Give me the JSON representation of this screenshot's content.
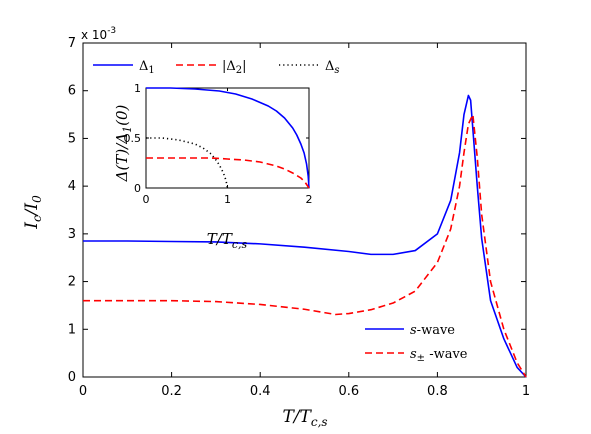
{
  "chart_data": [
    {
      "type": "line",
      "xlabel": "T/T_{c,s}",
      "xlabel_main": "T/T",
      "xlabel_sub": "c,s",
      "ylabel": "I_c/I_0",
      "ylabel_main": "I",
      "ylabel_sub": "c",
      "ylabel_rest": "/I",
      "ylabel_sub2": "0",
      "xlim": [
        0,
        1
      ],
      "ylim": [
        0,
        0.007
      ],
      "y_multiplier_base": "x 10",
      "y_multiplier_exp": "-3",
      "x_ticks": [
        "0",
        "0.2",
        "0.4",
        "0.6",
        "0.8",
        "1"
      ],
      "x_tick_values": [
        0,
        0.2,
        0.4,
        0.6,
        0.8,
        1
      ],
      "y_ticks": [
        "0",
        "1",
        "2",
        "3",
        "4",
        "5",
        "6",
        "7"
      ],
      "y_tick_values": [
        0,
        0.001,
        0.002,
        0.003,
        0.004,
        0.005,
        0.006,
        0.007
      ],
      "grid": false,
      "legend_placement": "bottom-right",
      "series": [
        {
          "name": "s-wave",
          "name_main": "s",
          "name_rest": "-wave",
          "color": "#0000ff",
          "style": "solid",
          "x": [
            0,
            0.1,
            0.2,
            0.3,
            0.4,
            0.5,
            0.6,
            0.65,
            0.7,
            0.75,
            0.8,
            0.83,
            0.85,
            0.86,
            0.87,
            0.875,
            0.88,
            0.89,
            0.9,
            0.92,
            0.95,
            0.98,
            1.0
          ],
          "y": [
            0.00285,
            0.00285,
            0.00284,
            0.00283,
            0.00279,
            0.00272,
            0.00263,
            0.00257,
            0.00257,
            0.00265,
            0.003,
            0.0037,
            0.0047,
            0.0055,
            0.0059,
            0.0058,
            0.0052,
            0.004,
            0.0029,
            0.0016,
            0.0008,
            0.0002,
            0.0
          ]
        },
        {
          "name": "s± -wave",
          "name_main": "s",
          "name_sub": "±",
          "name_rest": " -wave",
          "color": "#ff0000",
          "style": "dashed",
          "x": [
            0,
            0.1,
            0.2,
            0.3,
            0.4,
            0.5,
            0.57,
            0.6,
            0.65,
            0.7,
            0.75,
            0.8,
            0.83,
            0.85,
            0.86,
            0.87,
            0.88,
            0.89,
            0.9,
            0.92,
            0.95,
            0.98,
            1.0
          ],
          "y": [
            0.0016,
            0.0016,
            0.0016,
            0.00158,
            0.00152,
            0.00142,
            0.00131,
            0.00133,
            0.00141,
            0.00155,
            0.0018,
            0.0024,
            0.0031,
            0.004,
            0.0047,
            0.0053,
            0.0055,
            0.0046,
            0.0034,
            0.002,
            0.001,
            0.0003,
            0.0
          ]
        }
      ]
    },
    {
      "type": "line",
      "xlabel": "T/T_{c,s}",
      "xlabel_main": "T/T",
      "xlabel_sub": "c,s",
      "ylabel": "Δ(T)/Δ_1(0)",
      "ylabel_a": "Δ(T)/Δ",
      "ylabel_sub": "1",
      "ylabel_b": "(0)",
      "xlim": [
        0,
        2
      ],
      "ylim": [
        0,
        1
      ],
      "x_ticks": [
        "0",
        "1",
        "2"
      ],
      "x_tick_values": [
        0,
        1,
        2
      ],
      "y_ticks": [
        "0",
        "0.5",
        "1"
      ],
      "y_tick_values": [
        0,
        0.5,
        1
      ],
      "legend_placement": "top",
      "series": [
        {
          "name": "Δ1",
          "name_main": "Δ",
          "name_sub": "1",
          "color": "#0000ff",
          "style": "solid",
          "x": [
            0,
            0.3,
            0.6,
            0.9,
            1.1,
            1.3,
            1.5,
            1.6,
            1.7,
            1.8,
            1.85,
            1.9,
            1.94,
            1.97,
            1.99,
            2.0
          ],
          "y": [
            1.0,
            1.0,
            0.99,
            0.97,
            0.94,
            0.89,
            0.82,
            0.77,
            0.7,
            0.6,
            0.53,
            0.44,
            0.35,
            0.24,
            0.12,
            0.0
          ]
        },
        {
          "name": "|Δ2|",
          "name_main": "|Δ",
          "name_sub": "2",
          "name_rest": "|",
          "color": "#ff0000",
          "style": "dashed",
          "x": [
            0,
            0.4,
            0.8,
            1.0,
            1.2,
            1.4,
            1.6,
            1.7,
            1.8,
            1.9,
            1.95,
            2.0
          ],
          "y": [
            0.3,
            0.3,
            0.3,
            0.29,
            0.28,
            0.26,
            0.22,
            0.19,
            0.15,
            0.1,
            0.06,
            0.0
          ]
        },
        {
          "name": "Δs",
          "name_main": "Δ",
          "name_sub": "s",
          "color": "#000000",
          "style": "dotted",
          "x": [
            0,
            0.2,
            0.4,
            0.6,
            0.7,
            0.8,
            0.85,
            0.9,
            0.95,
            0.98,
            1.0
          ],
          "y": [
            0.5,
            0.5,
            0.48,
            0.44,
            0.4,
            0.34,
            0.29,
            0.23,
            0.15,
            0.08,
            0.0
          ]
        }
      ]
    }
  ]
}
